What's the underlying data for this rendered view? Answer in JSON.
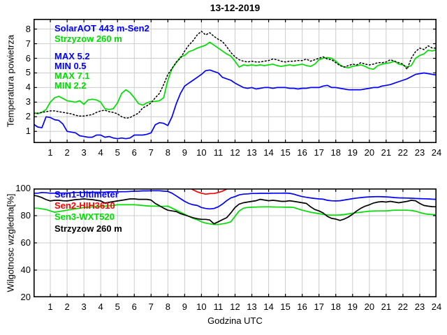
{
  "figure": {
    "title": "13-12-2019",
    "background": "#ffffff",
    "grid_color": "#cccccc"
  },
  "chart_data": [
    {
      "type": "line",
      "title": "13-12-2019",
      "ylabel": "Temperatura powietrza",
      "xlabel": "",
      "xlim": [
        0,
        24
      ],
      "ylim": [
        0.2,
        8.7
      ],
      "xticks": [
        1,
        2,
        3,
        4,
        5,
        6,
        7,
        8,
        9,
        10,
        11,
        12,
        13,
        14,
        15,
        16,
        17,
        18,
        19,
        20,
        21,
        22,
        23,
        24
      ],
      "yticks": [
        1,
        2,
        3,
        4,
        5,
        6,
        7,
        8
      ],
      "grid": true,
      "legend_position": "top-left-inside",
      "x_start": 0,
      "x_step": 0.25,
      "legend": [
        {
          "label": "SolarAOT 443 m-Sen2",
          "color": "#0000ff"
        },
        {
          "label": "Strzyzow 260 m",
          "color": "#00dd00"
        }
      ],
      "annotations": [
        {
          "text": "MAX 5.2",
          "color": "#0000ff"
        },
        {
          "text": "MIN 0.5",
          "color": "#0000ff"
        },
        {
          "text": "MAX 7.1",
          "color": "#00dd00"
        },
        {
          "text": "MIN 2.2",
          "color": "#00dd00"
        }
      ],
      "series": [
        {
          "name": "SolarAOT 443 m-Sen2",
          "color": "#0000ff",
          "style": "solid",
          "values": [
            1.5,
            1.3,
            1.25,
            2,
            1.95,
            1.8,
            1.75,
            1.5,
            1,
            0.95,
            0.9,
            0.7,
            0.65,
            0.6,
            0.6,
            0.75,
            0.75,
            0.6,
            0.65,
            0.55,
            0.5,
            0.55,
            0.5,
            0.55,
            0.75,
            0.75,
            0.75,
            0.8,
            0.9,
            1.45,
            1.6,
            1.55,
            1.4,
            2,
            2.9,
            3.6,
            4.1,
            4.3,
            4.5,
            4.7,
            4.9,
            5.15,
            5.2,
            5.1,
            5,
            4.7,
            4.6,
            4.5,
            4.3,
            4.15,
            4,
            3.95,
            4,
            3.9,
            3.95,
            4,
            4,
            3.95,
            4,
            4,
            4,
            3.95,
            3.95,
            3.9,
            3.95,
            3.95,
            4,
            4,
            4,
            4.1,
            4.15,
            4,
            4,
            3.95,
            3.9,
            3.85,
            3.85,
            3.85,
            3.85,
            3.9,
            3.95,
            4,
            4,
            4.1,
            4.15,
            4.2,
            4.3,
            4.4,
            4.5,
            4.6,
            4.75,
            4.9,
            4.95,
            5,
            4.95,
            4.9,
            4.85
          ]
        },
        {
          "name": "Strzyzow 260 m",
          "color": "#00dd00",
          "style": "solid",
          "values": [
            2.3,
            2.2,
            2.3,
            2.5,
            3,
            3.3,
            3.4,
            3.25,
            3.1,
            3.05,
            3,
            3.1,
            2.85,
            3.15,
            3.2,
            3.15,
            3,
            2.55,
            2.5,
            2.55,
            2.95,
            3.6,
            3.85,
            3.65,
            3.3,
            2.9,
            2.8,
            2.95,
            3.05,
            3.05,
            3.1,
            3.3,
            4.5,
            5.3,
            5.7,
            6.1,
            6.2,
            6.45,
            6.55,
            6.7,
            6.8,
            6.9,
            7.1,
            6.9,
            6.7,
            6.5,
            6.3,
            6.15,
            5.8,
            5.4,
            5.55,
            5.5,
            5.55,
            5.5,
            5.55,
            5.5,
            5.55,
            5.6,
            5.5,
            5.45,
            5.5,
            5.55,
            5.5,
            5.55,
            5.6,
            5.5,
            5.45,
            5.6,
            5.9,
            6,
            6.05,
            6,
            5.8,
            5.55,
            5.4,
            5.35,
            5.45,
            5.5,
            5.55,
            5.45,
            5.3,
            5.25,
            5.5,
            5.6,
            5.65,
            5.7,
            5.8,
            5.6,
            5.55,
            5.4,
            5.5,
            6,
            6.2,
            6.3,
            6.55,
            6.5,
            6.6
          ]
        },
        {
          "name": "unlabeled-dotted",
          "color": "#000000",
          "style": "dotted",
          "values": [
            2.2,
            2.25,
            2.3,
            2.35,
            2.4,
            2.4,
            2.35,
            2.3,
            2.25,
            2.2,
            2.1,
            2.05,
            2.05,
            2.1,
            2.15,
            2.3,
            2.4,
            2.45,
            2.35,
            2.3,
            2.2,
            2,
            1.9,
            1.95,
            2.1,
            2.25,
            2.6,
            2.75,
            2.95,
            3.3,
            3.6,
            4.2,
            4.9,
            5.3,
            5.75,
            6,
            6.5,
            6.9,
            7.2,
            7.6,
            7.85,
            7.6,
            7.75,
            7.5,
            7.3,
            7.15,
            6.8,
            6.4,
            6.1,
            5.9,
            5.8,
            5.75,
            5.8,
            5.75,
            5.75,
            5.8,
            5.85,
            5.95,
            5.9,
            5.8,
            5.75,
            5.8,
            5.8,
            5.85,
            5.85,
            5.95,
            5.8,
            5.9,
            6,
            6.1,
            5.95,
            5.9,
            5.7,
            5.5,
            5.4,
            5.5,
            5.6,
            5.55,
            5.7,
            5.6,
            5.55,
            5.6,
            5.7,
            5.7,
            5.75,
            5.9,
            5.8,
            5.7,
            5.6,
            5.25,
            6,
            6.45,
            6.7,
            6.6,
            6.85,
            6.7,
            6.7
          ]
        }
      ]
    },
    {
      "type": "line",
      "title": "",
      "ylabel": "Wilgotnosc wzgledna[%]",
      "xlabel": "Godzina UTC",
      "xlim": [
        0,
        24
      ],
      "ylim": [
        20,
        100
      ],
      "xticks": [
        1,
        2,
        3,
        4,
        5,
        6,
        7,
        8,
        9,
        10,
        11,
        12,
        13,
        14,
        15,
        16,
        17,
        18,
        19,
        20,
        21,
        22,
        23,
        24
      ],
      "yticks": [
        20,
        40,
        60,
        80,
        100
      ],
      "grid": true,
      "legend_position": "top-left-inside",
      "x_start": 0,
      "x_step": 0.25,
      "legend": [
        {
          "label": "Sen1-Ultimeter",
          "color": "#0000ff"
        },
        {
          "label": "Sen2-HIH3610",
          "color": "#ff0000"
        },
        {
          "label": "Sen3-WXT520",
          "color": "#00dd00"
        },
        {
          "label": "Strzyzow 260 m",
          "color": "#000000"
        }
      ],
      "annotations": [],
      "series": [
        {
          "name": "Sen1-Ultimeter",
          "color": "#0000ff",
          "style": "solid",
          "values": [
            96.5,
            96.5,
            97,
            96.8,
            96.5,
            96.5,
            96.5,
            96.6,
            96.6,
            96.8,
            97,
            97,
            97,
            97,
            97.2,
            97.2,
            97.2,
            97.3,
            97.5,
            97.5,
            97.5,
            97.6,
            97.6,
            97.8,
            98,
            98,
            98.2,
            98.2,
            98.3,
            98.3,
            98.3,
            98,
            97.8,
            96.5,
            94.5,
            92.5,
            90.5,
            89,
            88,
            87.5,
            86,
            85.3,
            85,
            85.3,
            86.5,
            88.5,
            91,
            93,
            94,
            95.3,
            95.8,
            96,
            96.3,
            96.3,
            96.4,
            96.4,
            96.4,
            96.5,
            96.5,
            96.5,
            96.6,
            96.4,
            95.8,
            94.8,
            94,
            93.5,
            93,
            92.6,
            92.3,
            92.1,
            91.3,
            90.9,
            90.8,
            91,
            91.5,
            92,
            92.5,
            92.9,
            93.3,
            93.6,
            93.8,
            93.9,
            94,
            93.9,
            93.8,
            93.6,
            93.3,
            93.1,
            93,
            92.9,
            92.8,
            92.6,
            92.5,
            92.4,
            92.3,
            92.1,
            92
          ]
        },
        {
          "name": "Sen2-HIH3610",
          "color": "#ff0000",
          "style": "solid",
          "clipped_above": 100,
          "values": [
            101,
            101,
            101,
            101,
            101,
            101,
            101,
            101,
            101,
            101,
            101,
            101,
            101,
            101,
            101,
            101,
            101,
            101,
            101,
            101,
            101,
            101,
            101,
            101,
            101,
            101,
            101,
            101,
            101,
            101,
            101,
            101,
            101,
            101,
            101,
            101,
            101,
            101,
            99,
            97.5,
            96.5,
            95.8,
            96.2,
            96.3,
            97,
            98,
            99.5,
            100.5,
            101,
            101,
            101,
            101,
            101,
            101,
            101,
            101,
            101,
            101,
            101,
            101,
            101,
            101,
            101,
            101,
            101,
            101,
            101,
            101,
            101,
            101,
            101,
            101,
            101,
            101,
            101,
            101,
            101,
            101,
            101,
            101,
            101,
            101,
            101,
            101,
            101,
            101,
            101,
            101,
            101,
            101,
            101,
            101,
            101,
            101,
            101,
            101,
            101
          ]
        },
        {
          "name": "Sen3-WXT520",
          "color": "#00dd00",
          "style": "solid",
          "values": [
            85.5,
            85.5,
            85,
            84.5,
            83.5,
            82.5,
            83,
            83.5,
            84,
            84.5,
            85,
            85.5,
            86,
            86.2,
            86.5,
            86.7,
            87,
            87,
            87.3,
            87.5,
            88,
            88,
            88,
            88,
            88,
            87.8,
            87.5,
            87.2,
            87,
            87,
            86.8,
            86.8,
            87,
            85.5,
            84,
            82.5,
            81,
            79.5,
            78,
            77,
            75.5,
            74.5,
            74,
            73.5,
            73.5,
            74,
            74.5,
            75.5,
            79.5,
            83.5,
            85.5,
            86,
            86.2,
            86.3,
            86.4,
            86.5,
            86.5,
            86.4,
            86.3,
            86.3,
            86.2,
            86.2,
            86,
            85,
            84,
            83.3,
            82.5,
            82,
            81.5,
            81,
            80.5,
            80.4,
            80.4,
            80.5,
            80.8,
            81.3,
            81.8,
            82.2,
            82.5,
            82.9,
            83.3,
            83.4,
            83.5,
            83.5,
            83.5,
            83.8,
            84,
            84,
            84,
            84,
            83.8,
            83.3,
            82.3,
            81.5,
            81,
            80.8,
            80.5
          ]
        },
        {
          "name": "Strzyzow 260 m",
          "color": "#000000",
          "style": "solid",
          "values": [
            95,
            94.3,
            93.3,
            91.8,
            90.8,
            91.3,
            91.3,
            91,
            90.8,
            91.3,
            91.8,
            92,
            92.3,
            92,
            91.8,
            91.3,
            90.8,
            89.3,
            89.8,
            90.3,
            90.8,
            91.3,
            91.8,
            92.3,
            92.3,
            92,
            92,
            92,
            91.5,
            89,
            87.3,
            85.5,
            84,
            83.5,
            83,
            81.5,
            80.5,
            79.5,
            78.5,
            77.8,
            77.3,
            77.3,
            76.8,
            74,
            75.5,
            77,
            78.5,
            82,
            86,
            88.5,
            89.5,
            90,
            90.5,
            91,
            92,
            91.5,
            91,
            91.3,
            91,
            90.5,
            90.5,
            91,
            90.5,
            90,
            89.5,
            89,
            86.5,
            84.5,
            83.5,
            82,
            79.5,
            78,
            77.5,
            76.5,
            77.5,
            79,
            81,
            83.5,
            85.5,
            87,
            88,
            89.3,
            90,
            90.3,
            90,
            90.5,
            90,
            89.5,
            90,
            90.5,
            91.3,
            91,
            89,
            87.5,
            87,
            86.6,
            86.5
          ]
        }
      ]
    }
  ]
}
